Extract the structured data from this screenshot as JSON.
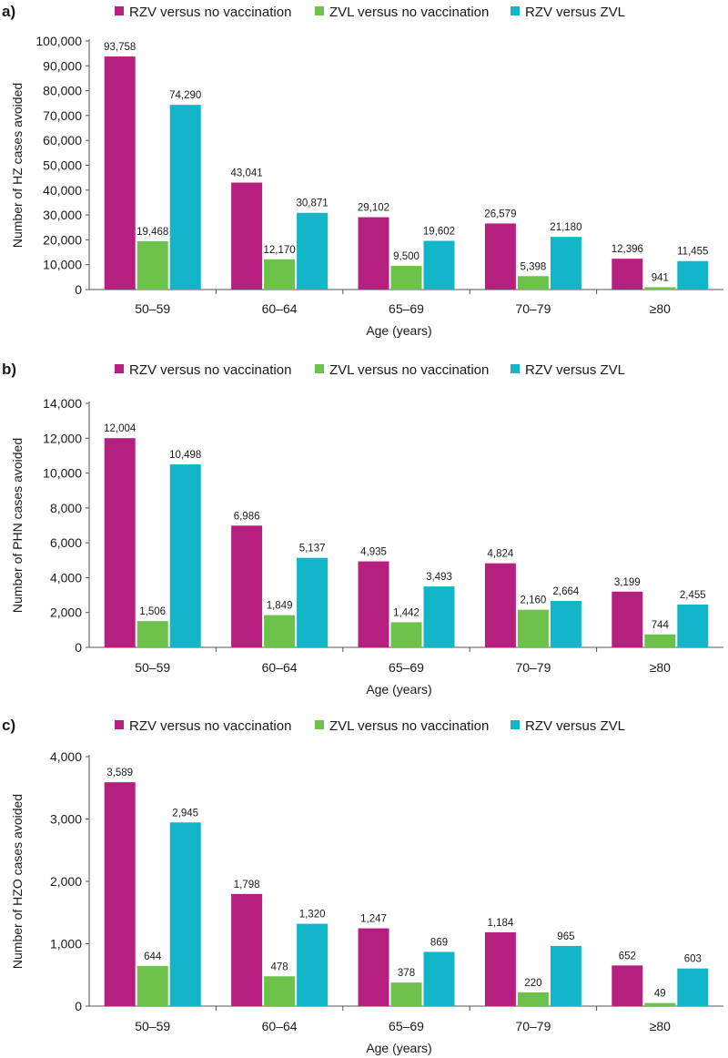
{
  "colors": {
    "rzv_vs_none": "#b5207f",
    "zvl_vs_none": "#6cc24a",
    "rzv_vs_zvl": "#13b5c9"
  },
  "chart_data": [
    {
      "type": "bar",
      "panel_label": "a)",
      "title": "",
      "xlabel": "Age (years)",
      "ylabel": "Number of HZ cases avoided",
      "categories": [
        "50–59",
        "60–64",
        "65–69",
        "70–79",
        "≥80"
      ],
      "ylim": [
        0,
        100000
      ],
      "yticks": [
        0,
        10000,
        20000,
        30000,
        40000,
        50000,
        60000,
        70000,
        80000,
        90000,
        100000
      ],
      "ytick_labels": [
        "0",
        "10,000",
        "20,000",
        "30,000",
        "40,000",
        "50,000",
        "60,000",
        "70,000",
        "80,000",
        "90,000",
        "100,000"
      ],
      "legend_position": "top",
      "series": [
        {
          "name": "RZV versus no vaccination",
          "color_key": "rzv_vs_none",
          "values": [
            93758,
            43041,
            29102,
            26579,
            12396
          ],
          "labels": [
            "93,758",
            "43,041",
            "29,102",
            "26,579",
            "12,396"
          ]
        },
        {
          "name": "ZVL versus no vaccination",
          "color_key": "zvl_vs_none",
          "values": [
            19468,
            12170,
            9500,
            5398,
            941
          ],
          "labels": [
            "19,468",
            "12,170",
            "9,500",
            "5,398",
            "941"
          ]
        },
        {
          "name": "RZV versus ZVL",
          "color_key": "rzv_vs_zvl",
          "values": [
            74290,
            30871,
            19602,
            21180,
            11455
          ],
          "labels": [
            "74,290",
            "30,871",
            "19,602",
            "21,180",
            "11,455"
          ]
        }
      ]
    },
    {
      "type": "bar",
      "panel_label": "b)",
      "title": "",
      "xlabel": "Age (years)",
      "ylabel": "Number of PHN cases avoided",
      "categories": [
        "50–59",
        "60–64",
        "65–69",
        "70–79",
        "≥80"
      ],
      "ylim": [
        0,
        14000
      ],
      "yticks": [
        0,
        2000,
        4000,
        6000,
        8000,
        10000,
        12000,
        14000
      ],
      "ytick_labels": [
        "0",
        "2,000",
        "4,000",
        "6,000",
        "8,000",
        "10,000",
        "12,000",
        "14,000"
      ],
      "legend_position": "top",
      "series": [
        {
          "name": "RZV versus no vaccination",
          "color_key": "rzv_vs_none",
          "values": [
            12004,
            6986,
            4935,
            4824,
            3199
          ],
          "labels": [
            "12,004",
            "6,986",
            "4,935",
            "4,824",
            "3,199"
          ]
        },
        {
          "name": "ZVL versus no vaccination",
          "color_key": "zvl_vs_none",
          "values": [
            1506,
            1849,
            1442,
            2160,
            744
          ],
          "labels": [
            "1,506",
            "1,849",
            "1,442",
            "2,160",
            "744"
          ]
        },
        {
          "name": "RZV versus ZVL",
          "color_key": "rzv_vs_zvl",
          "values": [
            10498,
            5137,
            3493,
            2664,
            2455
          ],
          "labels": [
            "10,498",
            "5,137",
            "3,493",
            "2,664",
            "2,455"
          ]
        }
      ]
    },
    {
      "type": "bar",
      "panel_label": "c)",
      "title": "",
      "xlabel": "Age (years)",
      "ylabel": "Number of HZO cases avoided",
      "categories": [
        "50–59",
        "60–64",
        "65–69",
        "70–79",
        "≥80"
      ],
      "ylim": [
        0,
        4000
      ],
      "yticks": [
        0,
        1000,
        2000,
        3000,
        4000
      ],
      "ytick_labels": [
        "0",
        "1,000",
        "2,000",
        "3,000",
        "4,000"
      ],
      "legend_position": "top",
      "series": [
        {
          "name": "RZV versus no vaccination",
          "color_key": "rzv_vs_none",
          "values": [
            3589,
            1798,
            1247,
            1184,
            652
          ],
          "labels": [
            "3,589",
            "1,798",
            "1,247",
            "1,184",
            "652"
          ]
        },
        {
          "name": "ZVL versus no vaccination",
          "color_key": "zvl_vs_none",
          "values": [
            644,
            478,
            378,
            220,
            49
          ],
          "labels": [
            "644",
            "478",
            "378",
            "220",
            "49"
          ]
        },
        {
          "name": "RZV versus ZVL",
          "color_key": "rzv_vs_zvl",
          "values": [
            2945,
            1320,
            869,
            965,
            603
          ],
          "labels": [
            "2,945",
            "1,320",
            "869",
            "965",
            "603"
          ]
        }
      ]
    }
  ]
}
